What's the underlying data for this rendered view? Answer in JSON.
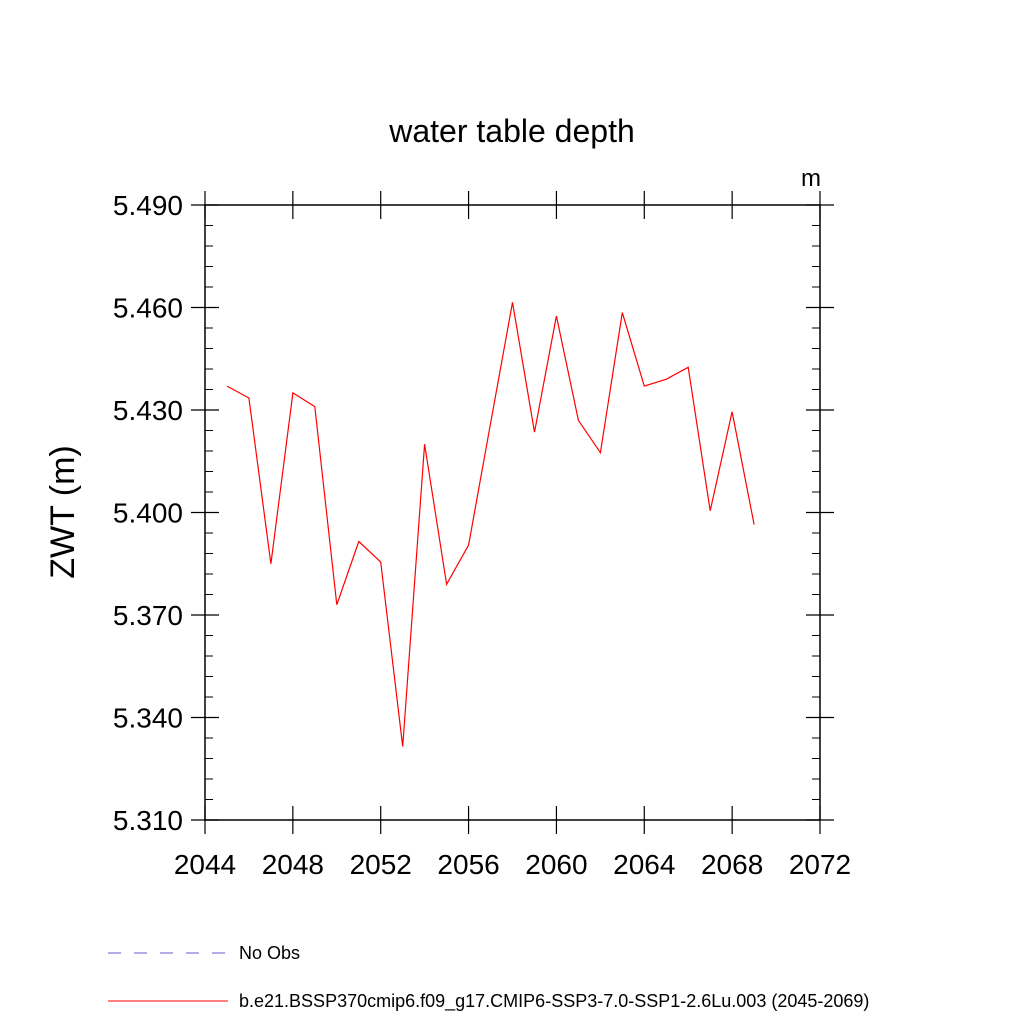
{
  "chart_data": {
    "type": "line",
    "title": "water table depth",
    "units_label": "m",
    "ylabel": "ZWT  (m)",
    "xlabel": "",
    "xlim": [
      2044,
      2072
    ],
    "ylim": [
      5.31,
      5.49
    ],
    "xticks": [
      2044,
      2048,
      2052,
      2056,
      2060,
      2064,
      2068,
      2072
    ],
    "xtick_labels": [
      "2044",
      "2048",
      "2052",
      "2056",
      "2060",
      "2064",
      "2068",
      "2072"
    ],
    "yticks": [
      5.31,
      5.34,
      5.37,
      5.4,
      5.43,
      5.46,
      5.49
    ],
    "ytick_labels": [
      "5.310",
      "5.340",
      "5.370",
      "5.400",
      "5.430",
      "5.460",
      "5.490"
    ],
    "series": [
      {
        "name": "b.e21.BSSP370cmip6.f09_g17.CMIP6-SSP3-7.0-SSP1-2.6Lu.003 (2045-2069)",
        "color": "#ff0000",
        "x": [
          2045,
          2046,
          2047,
          2048,
          2049,
          2050,
          2051,
          2052,
          2053,
          2054,
          2055,
          2056,
          2057,
          2058,
          2059,
          2060,
          2061,
          2062,
          2063,
          2064,
          2065,
          2066,
          2067,
          2068,
          2069
        ],
        "y": [
          5.437,
          5.4335,
          5.385,
          5.435,
          5.431,
          5.373,
          5.3915,
          5.3855,
          5.3315,
          5.42,
          5.379,
          5.3905,
          5.426,
          5.4615,
          5.4235,
          5.4575,
          5.427,
          5.4175,
          5.4585,
          5.437,
          5.439,
          5.4425,
          5.4005,
          5.4295,
          5.3965
        ]
      }
    ],
    "legend": [
      {
        "label": "No Obs",
        "color": "#6a5acd",
        "style": "dashed"
      },
      {
        "label": "b.e21.BSSP370cmip6.f09_g17.CMIP6-SSP3-7.0-SSP1-2.6Lu.003 (2045-2069)",
        "color": "#ff0000",
        "style": "solid"
      }
    ],
    "legend_position": "bottom",
    "grid": false
  }
}
